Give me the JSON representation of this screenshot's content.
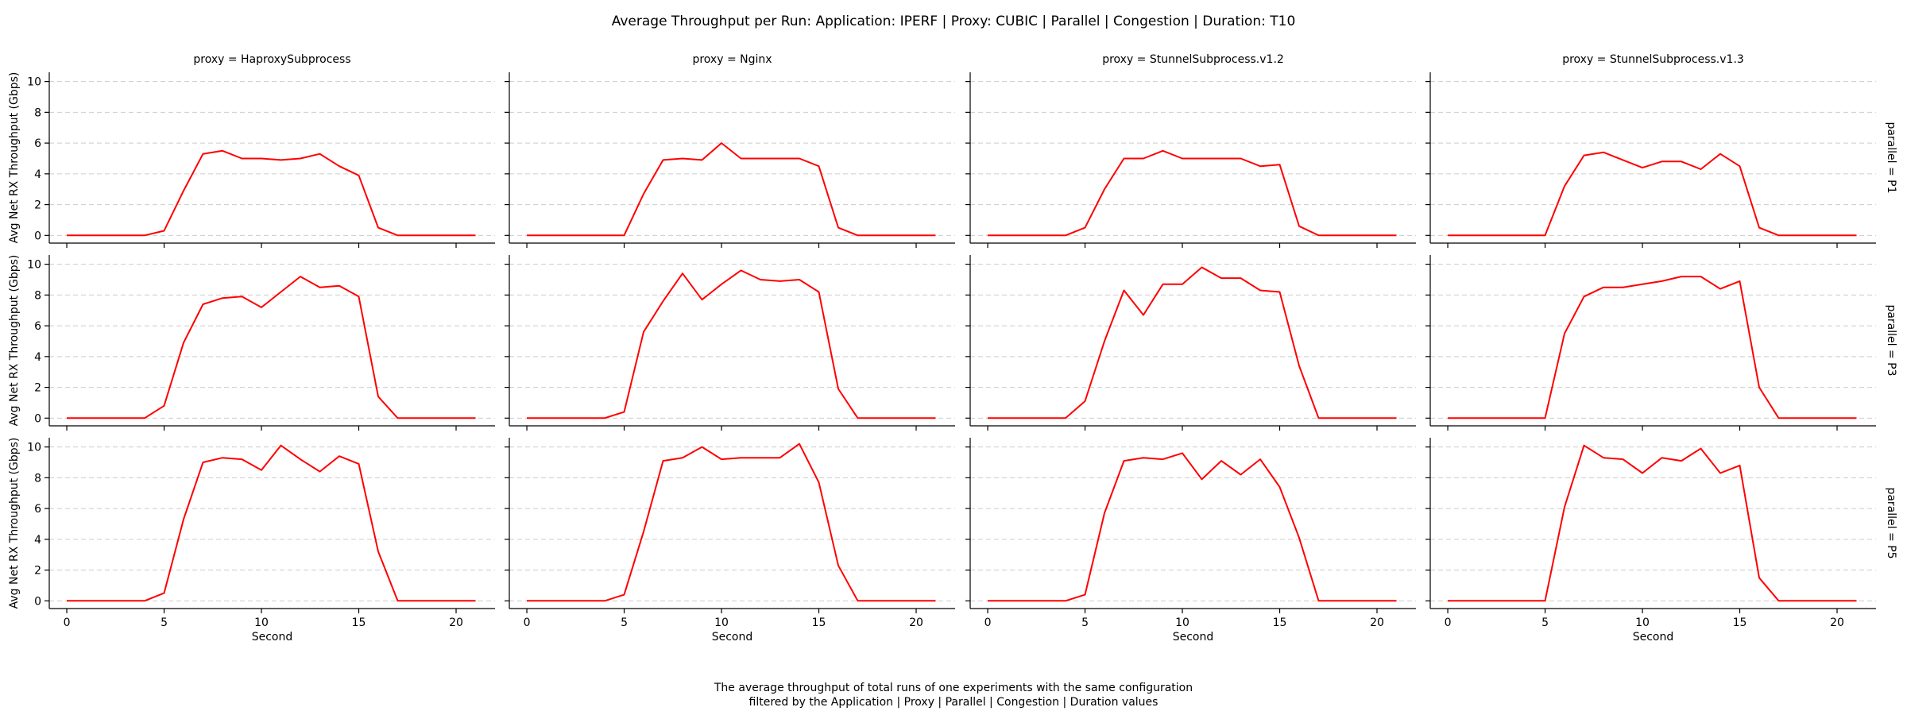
{
  "chart_data": {
    "type": "line",
    "title": "Average Throughput per Run: Application: IPERF | Proxy: CUBIC | Parallel | Congestion | Duration: T10",
    "xlabel": "Second",
    "ylabel": "Avg Net RX Throughput (Gbps)",
    "xlim": [
      -0.9,
      22
    ],
    "ylim": [
      -0.5,
      10.6
    ],
    "xticks": [
      0,
      5,
      10,
      15,
      20
    ],
    "yticks": [
      0,
      2,
      4,
      6,
      8,
      10
    ],
    "grid": "y-dashed",
    "line_color": "#ff0000",
    "x": [
      0,
      1,
      2,
      3,
      4,
      5,
      6,
      7,
      8,
      9,
      10,
      11,
      12,
      13,
      14,
      15,
      16,
      17,
      18,
      19,
      20,
      21
    ],
    "columns": [
      "proxy = HaproxySubprocess",
      "proxy = Nginx",
      "proxy = StunnelSubprocess.v1.2",
      "proxy = StunnelSubprocess.v1.3"
    ],
    "rows": [
      "parallel = P1",
      "parallel = P3",
      "parallel = P5"
    ],
    "panels": [
      [
        [
          0,
          0,
          0,
          0,
          0,
          0.3,
          2.9,
          5.3,
          5.5,
          5.0,
          5.0,
          4.9,
          5.0,
          5.3,
          4.5,
          3.9,
          0.5,
          0,
          0,
          0,
          0,
          0
        ],
        [
          0,
          0,
          0,
          0,
          0,
          0,
          2.7,
          4.9,
          5.0,
          4.9,
          6.0,
          5.0,
          5.0,
          5.0,
          5.0,
          4.5,
          0.5,
          0,
          0,
          0,
          0,
          0
        ],
        [
          0,
          0,
          0,
          0,
          0,
          0.5,
          3.0,
          5.0,
          5.0,
          5.5,
          5.0,
          5.0,
          5.0,
          5.0,
          4.5,
          4.6,
          0.6,
          0,
          0,
          0,
          0,
          0
        ],
        [
          0,
          0,
          0,
          0,
          0,
          0,
          3.2,
          5.2,
          5.4,
          4.9,
          4.4,
          4.8,
          4.8,
          4.3,
          5.3,
          4.5,
          0.5,
          0,
          0,
          0,
          0,
          0
        ]
      ],
      [
        [
          0,
          0,
          0,
          0,
          0,
          0.8,
          4.9,
          7.4,
          7.8,
          7.9,
          7.2,
          8.2,
          9.2,
          8.5,
          8.6,
          7.9,
          1.4,
          0,
          0,
          0,
          0,
          0
        ],
        [
          0,
          0,
          0,
          0,
          0,
          0.4,
          5.6,
          7.6,
          9.4,
          7.7,
          8.7,
          9.6,
          9.0,
          8.9,
          9.0,
          8.2,
          1.9,
          0,
          0,
          0,
          0,
          0
        ],
        [
          0,
          0,
          0,
          0,
          0,
          1.1,
          5.0,
          8.3,
          6.7,
          8.7,
          8.7,
          9.8,
          9.1,
          9.1,
          8.3,
          8.2,
          3.4,
          0,
          0,
          0,
          0,
          0
        ],
        [
          0,
          0,
          0,
          0,
          0,
          0,
          5.5,
          7.9,
          8.5,
          8.5,
          8.7,
          8.9,
          9.2,
          9.2,
          8.4,
          8.9,
          2.0,
          0,
          0,
          0,
          0,
          0
        ]
      ],
      [
        [
          0,
          0,
          0,
          0,
          0,
          0.5,
          5.3,
          9.0,
          9.3,
          9.2,
          8.5,
          10.1,
          9.2,
          8.4,
          9.4,
          8.9,
          3.2,
          0,
          0,
          0,
          0,
          0
        ],
        [
          0,
          0,
          0,
          0,
          0,
          0.4,
          4.5,
          9.1,
          9.3,
          10.0,
          9.2,
          9.3,
          9.3,
          9.3,
          10.2,
          7.7,
          2.3,
          0,
          0,
          0,
          0,
          0
        ],
        [
          0,
          0,
          0,
          0,
          0,
          0.4,
          5.7,
          9.1,
          9.3,
          9.2,
          9.6,
          7.9,
          9.1,
          8.2,
          9.2,
          7.4,
          4.1,
          0,
          0,
          0,
          0,
          0
        ],
        [
          0,
          0,
          0,
          0,
          0,
          0,
          6.1,
          10.1,
          9.3,
          9.2,
          8.3,
          9.3,
          9.1,
          9.9,
          8.3,
          8.8,
          1.5,
          0,
          0,
          0,
          0,
          0
        ]
      ]
    ],
    "caption_lines": [
      "The average throughput of total runs of one experiments with the same configuration",
      "filtered by the Application | Proxy | Parallel | Congestion | Duration values"
    ]
  }
}
